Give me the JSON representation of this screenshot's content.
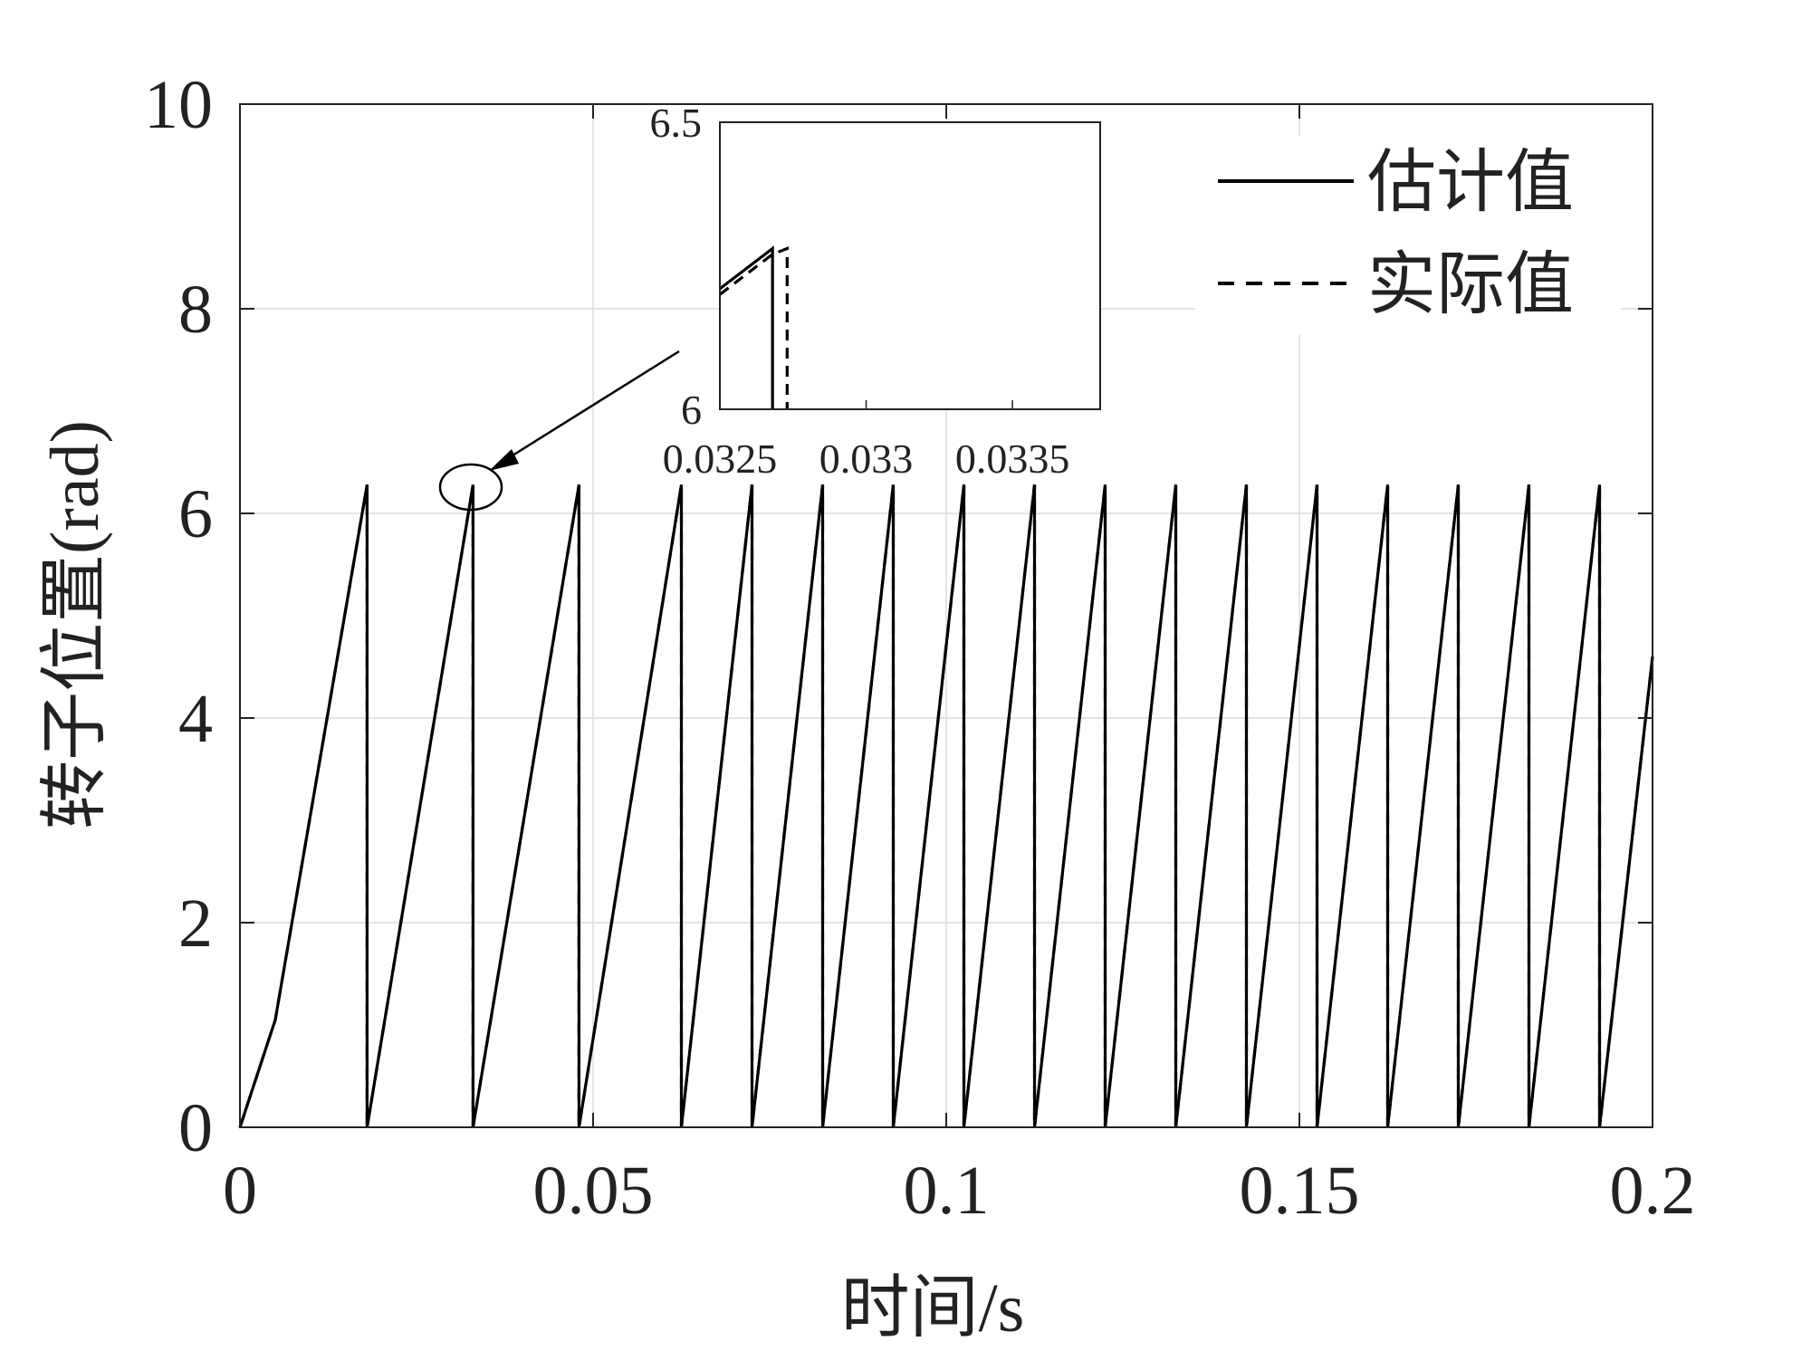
{
  "chart_data": {
    "type": "line",
    "title": "",
    "xlabel": "时间/s",
    "ylabel": "转子位置(rad)",
    "xlim": [
      0,
      0.2
    ],
    "ylim": [
      0,
      10
    ],
    "xticks": [
      "0",
      "0.05",
      "0.1",
      "0.15",
      "0.2"
    ],
    "yticks": [
      "0",
      "2",
      "4",
      "6",
      "8",
      "10"
    ],
    "grid": true,
    "legend_position": "top-right",
    "series": [
      {
        "name": "估计值",
        "style": "solid",
        "color": "#000000",
        "x": [
          0,
          0.005,
          0.018,
          0.018,
          0.033,
          0.033,
          0.048,
          0.048,
          0.0625,
          0.0625,
          0.0725,
          0.0725,
          0.0825,
          0.0825,
          0.0925,
          0.0925,
          0.1025,
          0.1025,
          0.1125,
          0.1125,
          0.1225,
          0.1225,
          0.1325,
          0.1325,
          0.1425,
          0.1425,
          0.1525,
          0.1525,
          0.1625,
          0.1625,
          0.1725,
          0.1725,
          0.1825,
          0.1825,
          0.1925,
          0.1925,
          0.2
        ],
        "y": [
          0,
          1.05,
          6.28,
          0,
          6.28,
          0,
          6.28,
          0,
          6.28,
          0,
          6.28,
          0,
          6.28,
          0,
          6.28,
          0,
          6.28,
          0,
          6.28,
          0,
          6.28,
          0,
          6.28,
          0,
          6.28,
          0,
          6.28,
          0,
          6.28,
          0,
          6.28,
          0,
          6.28,
          0,
          6.28,
          0,
          4.6
        ]
      },
      {
        "name": "实际值",
        "style": "dashed",
        "color": "#000000",
        "x": [
          0,
          0.005,
          0.018,
          0.018,
          0.033,
          0.033,
          0.048,
          0.048,
          0.0625,
          0.0625,
          0.0725,
          0.0725,
          0.0825,
          0.0825,
          0.0925,
          0.0925,
          0.1025,
          0.1025,
          0.1125,
          0.1125,
          0.1225,
          0.1225,
          0.1325,
          0.1325,
          0.1425,
          0.1425,
          0.1525,
          0.1525,
          0.1625,
          0.1625,
          0.1725,
          0.1725,
          0.1825,
          0.1825,
          0.1925,
          0.1925,
          0.2
        ],
        "y": [
          0,
          1.05,
          6.28,
          0,
          6.28,
          0,
          6.28,
          0,
          6.28,
          0,
          6.28,
          0,
          6.28,
          0,
          6.28,
          0,
          6.28,
          0,
          6.28,
          0,
          6.28,
          0,
          6.28,
          0,
          6.28,
          0,
          6.28,
          0,
          6.28,
          0,
          6.28,
          0,
          6.28,
          0,
          6.28,
          0,
          4.6
        ]
      }
    ],
    "inset": {
      "xlim": [
        0.0325,
        0.0338
      ],
      "ylim": [
        6,
        6.5
      ],
      "xticks": [
        "0.0325",
        "0.033",
        "0.0335"
      ],
      "yticks": [
        "6",
        "6.5"
      ],
      "series": [
        {
          "name": "估计值",
          "style": "solid",
          "x": [
            0.0325,
            0.03268,
            0.03268
          ],
          "y": [
            6.21,
            6.28,
            6.0
          ]
        },
        {
          "name": "实际值",
          "style": "dashed",
          "x": [
            0.0325,
            0.03268,
            0.03273,
            0.03273
          ],
          "y": [
            6.2,
            6.27,
            6.28,
            6.0
          ]
        }
      ]
    }
  }
}
